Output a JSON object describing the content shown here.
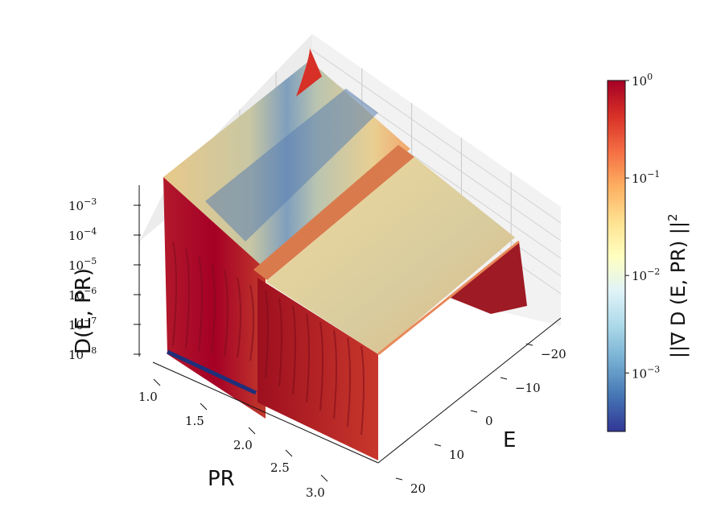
{
  "chart_data": {
    "type": "surface",
    "xlabel": "E",
    "ylabel": "PR",
    "zlabel": "D(E, PR)",
    "colorbar_label": "||∇ D (E, PR) ||",
    "colorbar_label_exponent": "2",
    "colorbar_scale": "log",
    "colormap": "RdYlBu_r",
    "colormap_stops": [
      "#313695",
      "#4575b4",
      "#74add1",
      "#abd9e9",
      "#e0f3f8",
      "#ffffbf",
      "#fee090",
      "#fdae61",
      "#f46d43",
      "#d73027",
      "#a50026"
    ],
    "e_ticks": [
      "−20",
      "−10",
      "0",
      "10",
      "20"
    ],
    "pr_ticks": [
      "1.0",
      "1.5",
      "2.0",
      "2.5",
      "3.0"
    ],
    "z_ticks": [
      {
        "base": "10",
        "exp": "−3"
      },
      {
        "base": "10",
        "exp": "−4"
      },
      {
        "base": "10",
        "exp": "−5"
      },
      {
        "base": "10",
        "exp": "−6"
      },
      {
        "base": "10",
        "exp": "−7"
      },
      {
        "base": "10",
        "exp": "−8"
      }
    ],
    "colorbar_ticks": [
      {
        "base": "10",
        "exp": "0"
      },
      {
        "base": "10",
        "exp": "−1"
      },
      {
        "base": "10",
        "exp": "−2"
      },
      {
        "base": "10",
        "exp": "−3"
      }
    ],
    "e_range": [
      -25,
      25
    ],
    "pr_range": [
      1.0,
      3.2
    ],
    "z_log_range": [
      -8,
      -3
    ],
    "colorbar_log_range": [
      -3.6,
      0
    ],
    "grid": true
  }
}
